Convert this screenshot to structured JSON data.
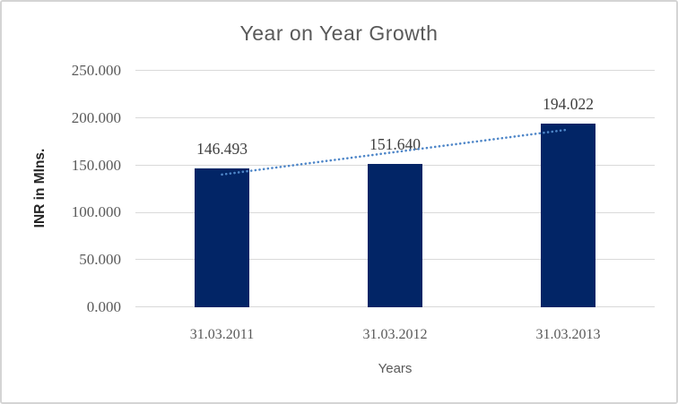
{
  "chart_data": {
    "type": "bar",
    "title": "Year on Year Growth",
    "xlabel": "Years",
    "ylabel": "INR in Mlns.",
    "categories": [
      "31.03.2011",
      "31.03.2012",
      "31.03.2013"
    ],
    "values": [
      146.493,
      151.64,
      194.022
    ],
    "value_labels": [
      "146.493",
      "151.640",
      "194.022"
    ],
    "y_ticks": [
      "250.000",
      "200.000",
      "150.000",
      "100.000",
      "50.000",
      "0.000"
    ],
    "ylim": [
      0,
      250
    ],
    "grid": "horizontal",
    "legend": "none",
    "trendline": {
      "type": "linear",
      "style": "dotted"
    },
    "colors": {
      "bar": "#022566",
      "trendline": "#4e86c8",
      "gridline": "#d9d9d9",
      "title_text": "#595959",
      "tick_text": "#595959",
      "data_label_text": "#3f3f3f",
      "y_axis_title_text": "#262626",
      "canvas_border": "#d4d4d4",
      "background": "#ffffff"
    }
  }
}
